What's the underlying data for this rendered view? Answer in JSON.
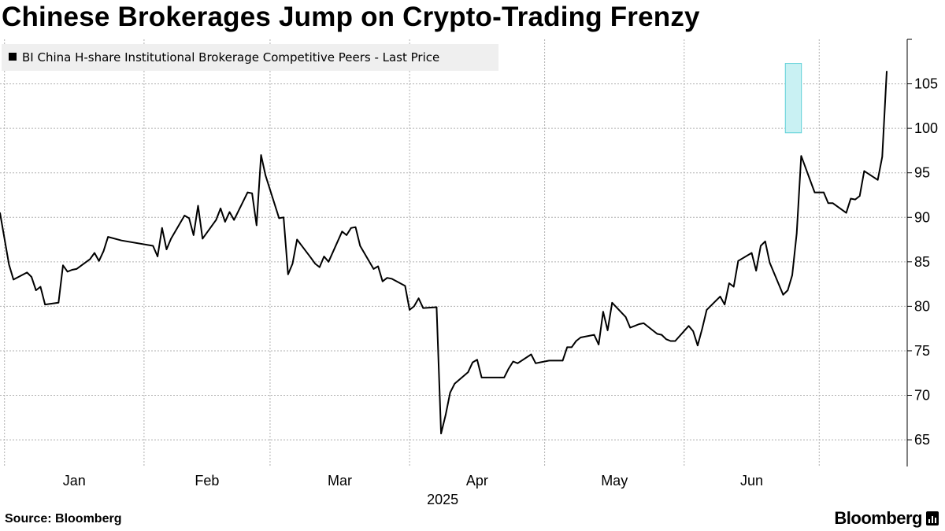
{
  "title": "Chinese Brokerages Jump on Crypto-Trading Frenzy",
  "source": "Source: Bloomberg",
  "brand": "Bloomberg",
  "colors": {
    "line": "#000000",
    "highlight_fill": "#c9f1f3",
    "highlight_stroke": "#5fd0d8",
    "legend_bg": "#efefef",
    "grid": "#b0b0b0"
  },
  "chart_data": {
    "type": "line",
    "title": "Chinese Brokerages Jump on Crypto-Trading Frenzy",
    "legend_position": "top-left",
    "grid": true,
    "ylim": [
      62,
      110
    ],
    "y_ticks": [
      65,
      70,
      75,
      80,
      85,
      90,
      95,
      100,
      105
    ],
    "x_month_labels": [
      "Jan",
      "Feb",
      "Mar",
      "Apr",
      "May",
      "Jun"
    ],
    "x_year_label": "2025",
    "highlight": {
      "x_start": "2025-06-24",
      "x_end": "2025-06-26",
      "y_start": 99.5,
      "y_end": 107.3
    },
    "series": [
      {
        "name": "BI China H-share Institutional Brokerage Competitive Peers - Last Price",
        "points": [
          [
            "2024-12-31",
            90.5
          ],
          [
            "2025-01-02",
            84.7
          ],
          [
            "2025-01-03",
            83.0
          ],
          [
            "2025-01-06",
            83.8
          ],
          [
            "2025-01-07",
            83.3
          ],
          [
            "2025-01-08",
            81.8
          ],
          [
            "2025-01-09",
            82.2
          ],
          [
            "2025-01-10",
            80.2
          ],
          [
            "2025-01-13",
            80.4
          ],
          [
            "2025-01-14",
            84.6
          ],
          [
            "2025-01-15",
            83.9
          ],
          [
            "2025-01-16",
            84.1
          ],
          [
            "2025-01-17",
            84.2
          ],
          [
            "2025-01-20",
            85.3
          ],
          [
            "2025-01-21",
            86.0
          ],
          [
            "2025-01-22",
            85.1
          ],
          [
            "2025-01-23",
            86.2
          ],
          [
            "2025-01-24",
            87.8
          ],
          [
            "2025-01-27",
            87.4
          ],
          [
            "2025-02-03",
            86.8
          ],
          [
            "2025-02-04",
            85.6
          ],
          [
            "2025-02-05",
            88.8
          ],
          [
            "2025-02-06",
            86.4
          ],
          [
            "2025-02-07",
            87.6
          ],
          [
            "2025-02-10",
            90.2
          ],
          [
            "2025-02-11",
            89.9
          ],
          [
            "2025-02-12",
            88.0
          ],
          [
            "2025-02-13",
            91.3
          ],
          [
            "2025-02-14",
            87.6
          ],
          [
            "2025-02-17",
            89.7
          ],
          [
            "2025-02-18",
            91.0
          ],
          [
            "2025-02-19",
            89.5
          ],
          [
            "2025-02-20",
            90.6
          ],
          [
            "2025-02-21",
            89.7
          ],
          [
            "2025-02-24",
            92.8
          ],
          [
            "2025-02-25",
            92.7
          ],
          [
            "2025-02-26",
            89.1
          ],
          [
            "2025-02-27",
            97.0
          ],
          [
            "2025-02-28",
            94.7
          ],
          [
            "2025-03-03",
            89.9
          ],
          [
            "2025-03-04",
            90.0
          ],
          [
            "2025-03-05",
            83.6
          ],
          [
            "2025-03-06",
            84.8
          ],
          [
            "2025-03-07",
            87.5
          ],
          [
            "2025-03-10",
            85.5
          ],
          [
            "2025-03-11",
            84.8
          ],
          [
            "2025-03-12",
            84.4
          ],
          [
            "2025-03-13",
            85.6
          ],
          [
            "2025-03-14",
            85.0
          ],
          [
            "2025-03-17",
            88.4
          ],
          [
            "2025-03-18",
            88.0
          ],
          [
            "2025-03-19",
            88.8
          ],
          [
            "2025-03-20",
            88.9
          ],
          [
            "2025-03-21",
            86.8
          ],
          [
            "2025-03-24",
            84.2
          ],
          [
            "2025-03-25",
            84.5
          ],
          [
            "2025-03-26",
            82.8
          ],
          [
            "2025-03-27",
            83.2
          ],
          [
            "2025-03-28",
            83.1
          ],
          [
            "2025-03-31",
            82.3
          ],
          [
            "2025-04-01",
            79.6
          ],
          [
            "2025-04-02",
            80.0
          ],
          [
            "2025-04-03",
            80.9
          ],
          [
            "2025-04-04",
            79.8
          ],
          [
            "2025-04-07",
            79.9
          ],
          [
            "2025-04-08",
            65.7
          ],
          [
            "2025-04-09",
            67.8
          ],
          [
            "2025-04-10",
            70.3
          ],
          [
            "2025-04-11",
            71.3
          ],
          [
            "2025-04-14",
            72.6
          ],
          [
            "2025-04-15",
            73.7
          ],
          [
            "2025-04-16",
            74.0
          ],
          [
            "2025-04-17",
            72.0
          ],
          [
            "2025-04-18",
            72.0
          ],
          [
            "2025-04-21",
            72.0
          ],
          [
            "2025-04-22",
            72.0
          ],
          [
            "2025-04-23",
            73.0
          ],
          [
            "2025-04-24",
            73.8
          ],
          [
            "2025-04-25",
            73.6
          ],
          [
            "2025-04-28",
            74.6
          ],
          [
            "2025-04-29",
            73.6
          ],
          [
            "2025-04-30",
            73.7
          ],
          [
            "2025-05-02",
            73.9
          ],
          [
            "2025-05-05",
            73.9
          ],
          [
            "2025-05-06",
            75.4
          ],
          [
            "2025-05-07",
            75.4
          ],
          [
            "2025-05-08",
            76.1
          ],
          [
            "2025-05-09",
            76.5
          ],
          [
            "2025-05-12",
            76.8
          ],
          [
            "2025-05-13",
            75.7
          ],
          [
            "2025-05-14",
            79.4
          ],
          [
            "2025-05-15",
            77.3
          ],
          [
            "2025-05-16",
            80.4
          ],
          [
            "2025-05-19",
            78.8
          ],
          [
            "2025-05-20",
            77.6
          ],
          [
            "2025-05-21",
            77.8
          ],
          [
            "2025-05-22",
            78.0
          ],
          [
            "2025-05-23",
            78.1
          ],
          [
            "2025-05-26",
            76.9
          ],
          [
            "2025-05-27",
            76.8
          ],
          [
            "2025-05-28",
            76.3
          ],
          [
            "2025-05-29",
            76.1
          ],
          [
            "2025-05-30",
            76.1
          ],
          [
            "2025-06-02",
            77.8
          ],
          [
            "2025-06-03",
            77.2
          ],
          [
            "2025-06-04",
            75.6
          ],
          [
            "2025-06-05",
            77.5
          ],
          [
            "2025-06-06",
            79.6
          ],
          [
            "2025-06-09",
            81.1
          ],
          [
            "2025-06-10",
            80.2
          ],
          [
            "2025-06-11",
            82.6
          ],
          [
            "2025-06-12",
            82.2
          ],
          [
            "2025-06-13",
            85.1
          ],
          [
            "2025-06-16",
            86.0
          ],
          [
            "2025-06-17",
            84.0
          ],
          [
            "2025-06-18",
            86.8
          ],
          [
            "2025-06-19",
            87.3
          ],
          [
            "2025-06-20",
            84.9
          ],
          [
            "2025-06-23",
            81.3
          ],
          [
            "2025-06-24",
            81.8
          ],
          [
            "2025-06-25",
            83.5
          ],
          [
            "2025-06-26",
            88.2
          ],
          [
            "2025-06-27",
            96.9
          ],
          [
            "2025-06-30",
            92.8
          ],
          [
            "2025-07-02",
            92.8
          ],
          [
            "2025-07-03",
            91.6
          ],
          [
            "2025-07-04",
            91.6
          ],
          [
            "2025-07-07",
            90.5
          ],
          [
            "2025-07-08",
            92.1
          ],
          [
            "2025-07-09",
            92.0
          ],
          [
            "2025-07-10",
            92.4
          ],
          [
            "2025-07-11",
            95.2
          ],
          [
            "2025-07-14",
            94.2
          ],
          [
            "2025-07-15",
            96.8
          ],
          [
            "2025-07-16",
            106.4
          ]
        ]
      }
    ]
  }
}
